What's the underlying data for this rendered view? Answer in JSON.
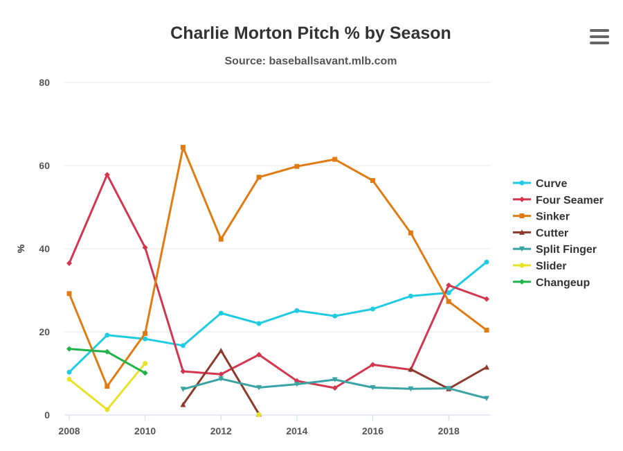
{
  "chart_data": {
    "type": "line",
    "title": "Charlie Morton Pitch % by Season",
    "subtitle": "Source: baseballsavant.mlb.com",
    "xlabel": "",
    "ylabel": "%",
    "xlim": [
      2008,
      2019
    ],
    "ylim": [
      0,
      80
    ],
    "x_ticks": [
      "2008",
      "2010",
      "2012",
      "2014",
      "2016",
      "2018"
    ],
    "y_ticks": [
      "0",
      "20",
      "40",
      "60",
      "80"
    ],
    "grid": true,
    "legend_position": "right",
    "series": [
      {
        "name": "Curve",
        "color": "#1ecbe1",
        "marker": "circle",
        "points": [
          [
            2008,
            10.3
          ],
          [
            2009,
            19.2
          ],
          [
            2010,
            18.3
          ],
          [
            2011,
            16.7
          ],
          [
            2012,
            24.5
          ],
          [
            2013,
            22.0
          ],
          [
            2014,
            25.1
          ],
          [
            2015,
            23.8
          ],
          [
            2016,
            25.5
          ],
          [
            2017,
            28.6
          ],
          [
            2018,
            29.4
          ],
          [
            2019,
            36.8
          ]
        ]
      },
      {
        "name": "Four Seamer",
        "color": "#d3364f",
        "marker": "diamond",
        "points": [
          [
            2008,
            36.5
          ],
          [
            2009,
            57.8
          ],
          [
            2010,
            40.3
          ],
          [
            2011,
            10.5
          ],
          [
            2012,
            9.8
          ],
          [
            2013,
            14.5
          ],
          [
            2014,
            8.2
          ],
          [
            2015,
            6.5
          ],
          [
            2016,
            12.1
          ],
          [
            2017,
            10.9
          ],
          [
            2018,
            31.2
          ],
          [
            2019,
            27.9
          ]
        ]
      },
      {
        "name": "Sinker",
        "color": "#e07b12",
        "marker": "square",
        "points": [
          [
            2008,
            29.2
          ],
          [
            2009,
            6.9
          ],
          [
            2010,
            19.6
          ],
          [
            2011,
            64.4
          ],
          [
            2012,
            42.3
          ],
          [
            2013,
            57.2
          ],
          [
            2014,
            59.8
          ],
          [
            2015,
            61.5
          ],
          [
            2016,
            56.4
          ],
          [
            2017,
            43.8
          ],
          [
            2018,
            27.3
          ],
          [
            2019,
            20.4
          ]
        ]
      },
      {
        "name": "Cutter",
        "color": "#8b3a2b",
        "marker": "triangle",
        "points": [
          [
            2011,
            2.5
          ],
          [
            2012,
            15.5
          ],
          [
            2013,
            0.2
          ],
          [
            2017,
            11.0
          ],
          [
            2018,
            6.3
          ],
          [
            2019,
            11.5
          ]
        ]
      },
      {
        "name": "Split Finger",
        "color": "#3aa3a3",
        "marker": "triangle-down",
        "points": [
          [
            2011,
            6.2
          ],
          [
            2012,
            8.7
          ],
          [
            2013,
            6.6
          ],
          [
            2014,
            7.4
          ],
          [
            2015,
            8.5
          ],
          [
            2016,
            6.6
          ],
          [
            2017,
            6.3
          ],
          [
            2018,
            6.4
          ],
          [
            2019,
            4.0
          ]
        ]
      },
      {
        "name": "Slider",
        "color": "#e8e225",
        "marker": "circle",
        "points": [
          [
            2008,
            8.6
          ],
          [
            2009,
            1.3
          ],
          [
            2010,
            12.4
          ],
          [
            2013,
            0.1
          ]
        ]
      },
      {
        "name": "Changeup",
        "color": "#1fb34a",
        "marker": "diamond",
        "points": [
          [
            2008,
            15.9
          ],
          [
            2009,
            15.2
          ],
          [
            2010,
            10.1
          ]
        ]
      }
    ]
  }
}
